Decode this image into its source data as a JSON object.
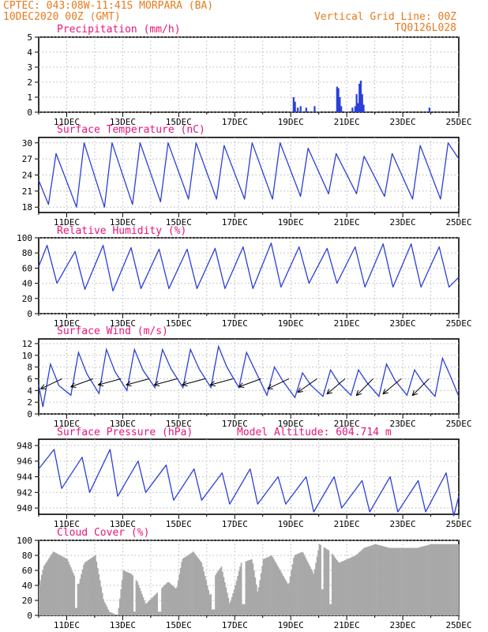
{
  "header": {
    "line1_left": "CPTEC:  043:08W-11:41S  MORPARA (BA)",
    "line2_left": "10DEC2020 00Z (GMT)",
    "line1_right": "Vertical Grid Line: 00Z",
    "line2_right": "TQ0126L028"
  },
  "colors": {
    "header": "#e87a1e",
    "panel_title": "#e8157a",
    "series": "#2b3fd8",
    "wind_arrow": "#000000",
    "cloud_fill": "#a8a8a8",
    "grid": "#b5b5b5"
  },
  "x_axis": {
    "start": "10DEC2020 00Z",
    "end": "25DEC2020 00Z",
    "tick_labels": [
      "11DEC",
      "13DEC",
      "15DEC",
      "17DEC",
      "19DEC",
      "21DEC",
      "23DEC",
      "25DEC"
    ]
  },
  "chart_data": [
    {
      "id": "precip",
      "type": "bar",
      "title": "Precipitation (mm/h)",
      "ylim": [
        0,
        5
      ],
      "yticks": [
        0,
        1,
        2,
        3,
        4,
        5
      ],
      "grid": true,
      "x_unit": "days since 10DEC2020 00Z",
      "points": [
        [
          9.1,
          1.0
        ],
        [
          9.15,
          0.7
        ],
        [
          9.25,
          0.3
        ],
        [
          9.35,
          0.4
        ],
        [
          9.55,
          0.3
        ],
        [
          9.85,
          0.4
        ],
        [
          10.65,
          1.7
        ],
        [
          10.7,
          1.6
        ],
        [
          10.75,
          1.0
        ],
        [
          10.8,
          0.4
        ],
        [
          11.2,
          0.3
        ],
        [
          11.3,
          0.4
        ],
        [
          11.35,
          1.2
        ],
        [
          11.4,
          0.6
        ],
        [
          11.45,
          1.9
        ],
        [
          11.5,
          2.1
        ],
        [
          11.55,
          1.2
        ],
        [
          11.6,
          0.5
        ],
        [
          13.95,
          0.3
        ]
      ]
    },
    {
      "id": "temp",
      "type": "line",
      "title": "Surface Temperature (nC)",
      "ylim": [
        17,
        31
      ],
      "yticks": [
        18,
        21,
        24,
        27,
        30
      ],
      "grid": true,
      "daily_max": [
        28,
        30,
        30,
        30,
        30,
        30,
        29.5,
        30,
        30,
        29,
        28,
        27.5,
        28,
        29.5,
        30
      ],
      "daily_min": [
        18.5,
        18,
        18,
        18.5,
        19,
        19.5,
        19.5,
        19.5,
        19.5,
        20,
        20.5,
        20.5,
        20,
        19.5,
        19.5
      ],
      "start_value": 23,
      "end_value": 27
    },
    {
      "id": "rh",
      "type": "line",
      "title": "Relative Humidity (%)",
      "ylim": [
        0,
        100
      ],
      "yticks": [
        0,
        20,
        40,
        60,
        80,
        100
      ],
      "grid": true,
      "daily_max": [
        90,
        82,
        90,
        87,
        85,
        85,
        86,
        88,
        93,
        88,
        86,
        88,
        92,
        92,
        88
      ],
      "daily_min": [
        40,
        32,
        30,
        33,
        33,
        33,
        33,
        33,
        35,
        40,
        40,
        35,
        35,
        35,
        35
      ],
      "start_value": 62,
      "end_value": 48
    },
    {
      "id": "wind",
      "type": "line",
      "title": "Surface Wind (m/s)",
      "ylim": [
        0,
        12.8
      ],
      "yticks": [
        0,
        2,
        4,
        6,
        8,
        10,
        12
      ],
      "grid": true,
      "speed_peaks": [
        8.5,
        10.5,
        11,
        11,
        11,
        11,
        11.5,
        10.5,
        8,
        7,
        7.5,
        7.5,
        8.5,
        7.5,
        9.5
      ],
      "speed_lows": [
        1.2,
        3.2,
        3.5,
        4,
        4.5,
        4.5,
        4.5,
        4.5,
        3.2,
        2.8,
        3,
        3.2,
        3,
        3.2,
        3
      ],
      "arrow_days": [
        0.5,
        1.6,
        2.6,
        3.6,
        4.6,
        5.6,
        6.6,
        7.6,
        8.6,
        9.6,
        10.6,
        11.6,
        12.6,
        13.6
      ],
      "arrow_dir_deg": [
        205,
        200,
        195,
        195,
        195,
        195,
        195,
        200,
        205,
        215,
        220,
        225,
        220,
        225
      ]
    },
    {
      "id": "pres",
      "type": "line",
      "title": "Surface Pressure (hPa)",
      "extra_label": "Model Altitude: 604.714 m",
      "ylim": [
        939.2,
        948.8
      ],
      "yticks": [
        940,
        942,
        944,
        946,
        948
      ],
      "grid": true,
      "daily_max": [
        947.5,
        946.5,
        947.5,
        946,
        945.5,
        945,
        944.5,
        945,
        944,
        944,
        944,
        943.5,
        944,
        943.5,
        944.5
      ],
      "daily_min": [
        942.5,
        942,
        941.5,
        942,
        941,
        941,
        940.5,
        940.5,
        940.5,
        939.5,
        940,
        939.5,
        939.5,
        939.5,
        939
      ],
      "start_value": 945,
      "end_value": 941.5
    },
    {
      "id": "cloud",
      "type": "area",
      "title": "Cloud Cover (%)",
      "ylim": [
        0,
        100
      ],
      "yticks": [
        0,
        20,
        40,
        60,
        80,
        100
      ],
      "grid": true,
      "x_unit": "days since 10DEC2020 00Z",
      "envelope": [
        [
          0,
          40
        ],
        [
          0.15,
          65
        ],
        [
          0.5,
          85
        ],
        [
          1,
          75
        ],
        [
          1.4,
          40
        ],
        [
          1.6,
          70
        ],
        [
          2,
          80
        ],
        [
          2.3,
          20
        ],
        [
          2.5,
          5
        ],
        [
          2.8,
          0
        ],
        [
          3,
          60
        ],
        [
          3.3,
          55
        ],
        [
          3.5,
          45
        ],
        [
          3.8,
          15
        ],
        [
          4.2,
          30
        ],
        [
          4.6,
          45
        ],
        [
          4.9,
          35
        ],
        [
          5.1,
          75
        ],
        [
          5.5,
          85
        ],
        [
          5.8,
          70
        ],
        [
          6.1,
          25
        ],
        [
          6.3,
          55
        ],
        [
          6.5,
          65
        ],
        [
          6.8,
          15
        ],
        [
          7.0,
          40
        ],
        [
          7.2,
          70
        ],
        [
          7.6,
          75
        ],
        [
          7.8,
          30
        ],
        [
          8.0,
          75
        ],
        [
          8.3,
          80
        ],
        [
          8.6,
          60
        ],
        [
          8.9,
          40
        ],
        [
          9.1,
          80
        ],
        [
          9.4,
          85
        ],
        [
          9.8,
          55
        ],
        [
          10.0,
          95
        ],
        [
          10.4,
          85
        ],
        [
          10.7,
          70
        ],
        [
          11.0,
          75
        ],
        [
          11.3,
          80
        ],
        [
          11.6,
          90
        ],
        [
          12.0,
          95
        ],
        [
          12.5,
          90
        ],
        [
          13.0,
          90
        ],
        [
          13.5,
          90
        ],
        [
          14.0,
          95
        ],
        [
          15,
          95
        ]
      ],
      "dips": [
        [
          1.3,
          10
        ],
        [
          3.4,
          5
        ],
        [
          4.3,
          5
        ],
        [
          6.2,
          8
        ],
        [
          7.3,
          15
        ],
        [
          10.1,
          35
        ],
        [
          10.4,
          15
        ]
      ]
    }
  ]
}
